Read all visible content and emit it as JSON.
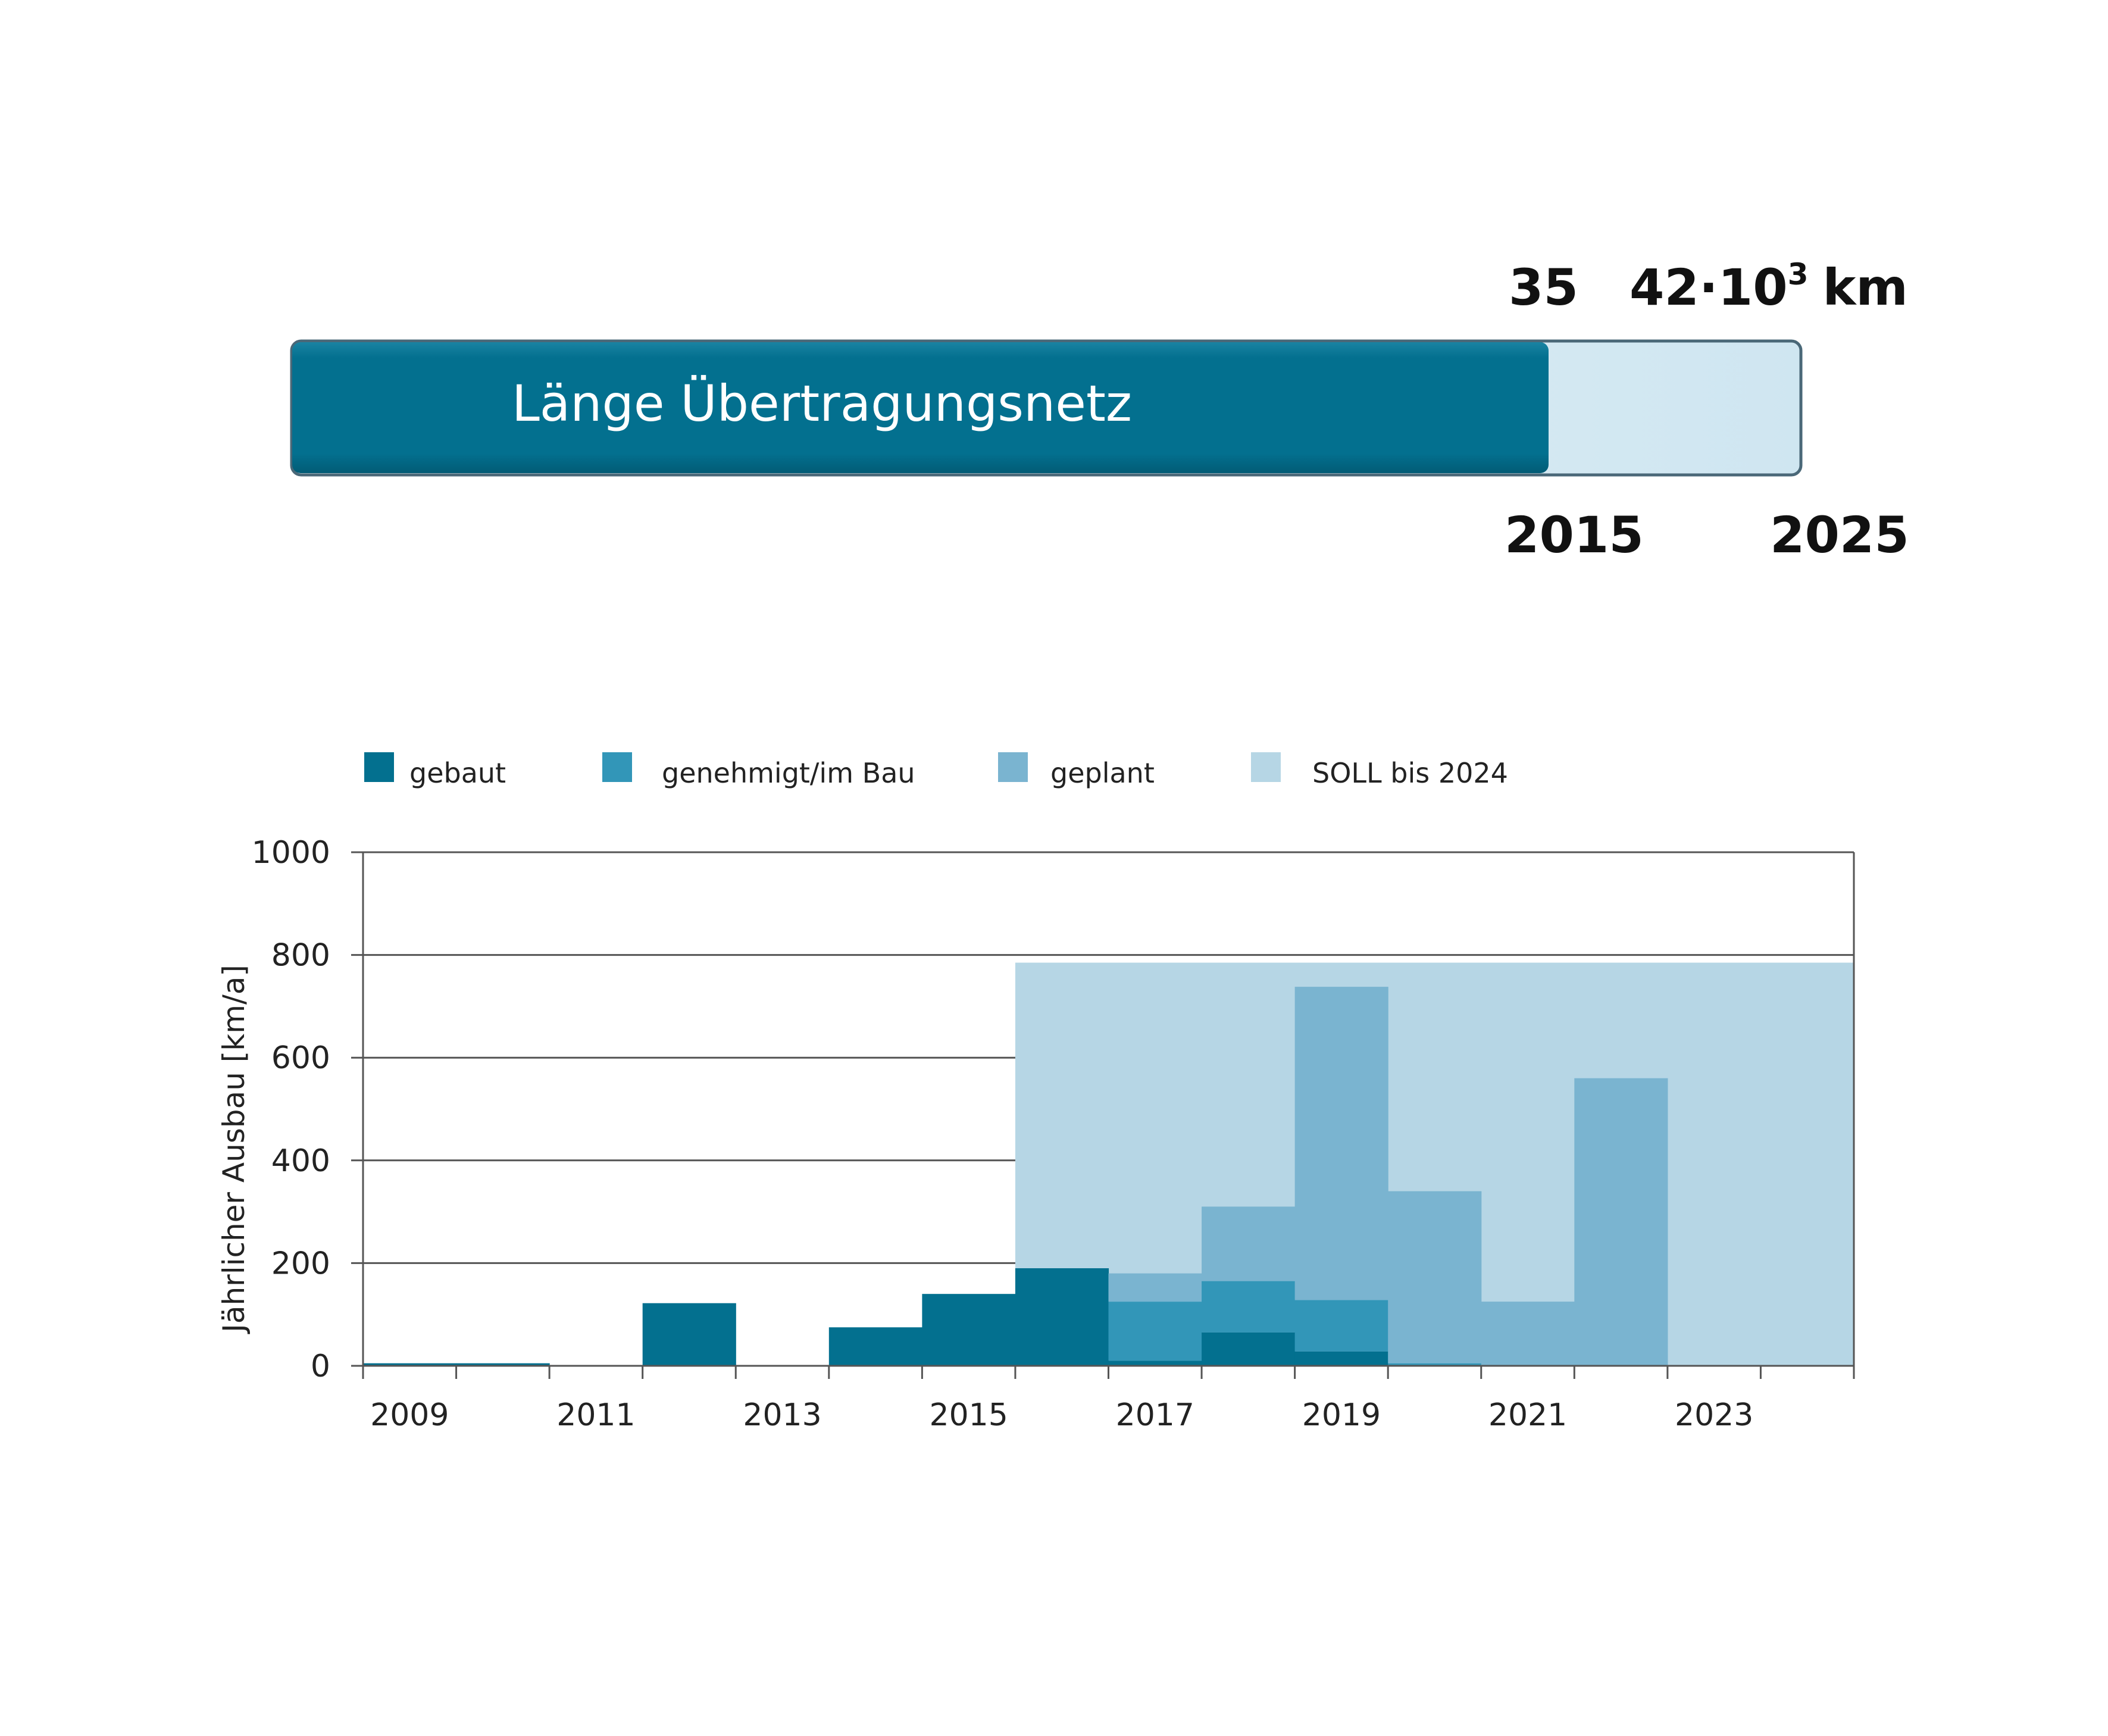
{
  "progress": {
    "label": "Länge Übertragungsnetz",
    "current_value": "35",
    "target_value": "42·10",
    "target_exponent": "3",
    "target_unit": "km",
    "current_year": "2015",
    "target_year": "2025",
    "fill_fraction": 0.8333,
    "colors": {
      "fill": "#03708f",
      "remaining": "#d6eaf3",
      "border": "#4a6878"
    }
  },
  "chart_data": {
    "type": "bar",
    "ylabel": "Jährlicher Ausbau [km/a]",
    "xlabel": "",
    "ylim": [
      0,
      1000
    ],
    "yticks": [
      0,
      200,
      400,
      600,
      800,
      1000
    ],
    "xlim": [
      2008.5,
      2024.5
    ],
    "xtick_values": [
      2009,
      2011,
      2013,
      2015,
      2017,
      2019,
      2021,
      2023
    ],
    "xtick_labels": [
      "2009",
      "2011",
      "2013",
      "2015",
      "2017",
      "2019",
      "2021",
      "2023"
    ],
    "grid": true,
    "legend_position": "top",
    "legend": [
      {
        "key": "gebaut",
        "label": "gebaut",
        "color": "#03708f"
      },
      {
        "key": "genehmigt",
        "label": "genehmigt/im Bau",
        "color": "#3296b8"
      },
      {
        "key": "geplant",
        "label": "geplant",
        "color": "#7ab4d0"
      },
      {
        "key": "soll",
        "label": "SOLL bis 2024",
        "color": "#b6d6e5"
      }
    ],
    "soll": {
      "name": "SOLL bis 2024",
      "from_year": 2015.5,
      "to_year": 2024.5,
      "value": 785,
      "color": "#b6d6e5"
    },
    "years": [
      2009,
      2010,
      2011,
      2012,
      2013,
      2014,
      2015,
      2016,
      2017,
      2018,
      2019,
      2020,
      2021,
      2022,
      2023,
      2024
    ],
    "series": [
      {
        "name": "gebaut",
        "color": "#03708f",
        "values": [
          5,
          5,
          0,
          122,
          0,
          75,
          140,
          190,
          10,
          65,
          28,
          0,
          0,
          0,
          0,
          0
        ]
      },
      {
        "name": "genehmigt/im Bau",
        "color": "#3296b8",
        "values": [
          0,
          0,
          0,
          0,
          0,
          0,
          0,
          0,
          115,
          100,
          100,
          5,
          0,
          0,
          0,
          0
        ]
      },
      {
        "name": "geplant",
        "color": "#7ab4d0",
        "values": [
          0,
          0,
          0,
          0,
          0,
          0,
          0,
          0,
          55,
          145,
          610,
          335,
          125,
          560,
          0,
          0
        ]
      }
    ]
  }
}
